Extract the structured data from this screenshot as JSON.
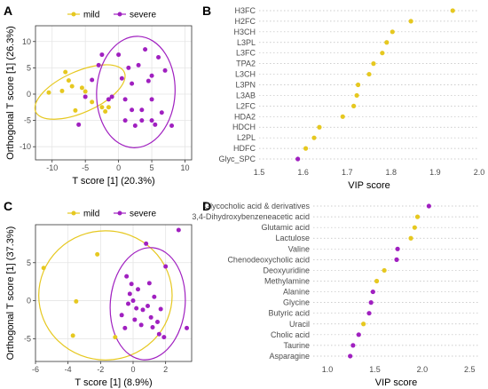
{
  "panels": {
    "A": {
      "letter": "A"
    },
    "B": {
      "letter": "B"
    },
    "C": {
      "letter": "C"
    },
    "D": {
      "letter": "D"
    }
  },
  "colors": {
    "mild": "#e6c820",
    "severe": "#a020c0",
    "grid": "#e5e5e5",
    "axis": "#333333"
  },
  "chart_data": [
    {
      "id": "A",
      "type": "scatter",
      "xlabel": "T score [1] (20.3%)",
      "ylabel": "Orthogonal T score [1] (26.3%)",
      "xlim": [
        -12.5,
        11
      ],
      "ylim": [
        -12.5,
        13
      ],
      "xticks": [
        -10,
        -5,
        0,
        5,
        10
      ],
      "yticks": [
        -10,
        -5,
        0,
        5,
        10
      ],
      "legend": {
        "position": "top",
        "entries": [
          "mild",
          "severe"
        ]
      },
      "grid": true,
      "series": [
        {
          "name": "mild",
          "color": "#e6c820",
          "points": [
            [
              -10.5,
              0.3
            ],
            [
              -8.5,
              0.6
            ],
            [
              -8,
              4.2
            ],
            [
              -7.5,
              2.6
            ],
            [
              -7,
              1.5
            ],
            [
              -6.5,
              -3.1
            ],
            [
              -5.5,
              1.2
            ],
            [
              -5,
              0.5
            ],
            [
              -4,
              -1.5
            ],
            [
              -2.5,
              -2.5
            ],
            [
              -2,
              -3.3
            ],
            [
              -1.5,
              -2.5
            ]
          ]
        },
        {
          "name": "severe",
          "color": "#a020c0",
          "points": [
            [
              -6,
              -5.8
            ],
            [
              -5,
              -0.5
            ],
            [
              -4,
              2.7
            ],
            [
              -3,
              5.5
            ],
            [
              -2.5,
              7.5
            ],
            [
              -1.5,
              -1
            ],
            [
              -1,
              -0.5
            ],
            [
              0,
              7.5
            ],
            [
              0.5,
              3
            ],
            [
              1,
              -5
            ],
            [
              1,
              -1
            ],
            [
              1.5,
              5
            ],
            [
              2,
              -3
            ],
            [
              2,
              2
            ],
            [
              2.5,
              -6
            ],
            [
              3,
              5.5
            ],
            [
              3.5,
              -3
            ],
            [
              3.5,
              -5
            ],
            [
              4,
              8.5
            ],
            [
              4.5,
              2.5
            ],
            [
              5,
              -1
            ],
            [
              5,
              3.5
            ],
            [
              5,
              -5
            ],
            [
              5.5,
              -5.8
            ],
            [
              6,
              7
            ],
            [
              6.5,
              -3.5
            ],
            [
              7,
              4.5
            ],
            [
              8,
              -6
            ]
          ]
        }
      ],
      "ellipses": [
        {
          "series": "mild",
          "cx": -5.8,
          "cy": 0.4,
          "rx": 7.3,
          "ry": 3.9,
          "angle_deg": -24
        },
        {
          "series": "severe",
          "cx": 2.6,
          "cy": 0.4,
          "rx": 5.9,
          "ry": 10.6,
          "angle_deg": 3
        }
      ]
    },
    {
      "id": "B",
      "type": "scatter",
      "xlabel": "VIP score",
      "ylabel": "",
      "xlim": [
        1.5,
        2.0
      ],
      "xticks": [
        1.5,
        1.6,
        1.7,
        1.8,
        1.9,
        2.0
      ],
      "grid": true,
      "color": "#e6c820",
      "categories": [
        "H3FC",
        "H2FC",
        "H3CH",
        "L3PL",
        "L3FC",
        "TPA2",
        "L3CH",
        "L3PN",
        "L3AB",
        "L2FC",
        "HDA2",
        "HDCH",
        "L2PL",
        "HDFC",
        "Glyc_SPC"
      ],
      "values": [
        1.94,
        1.845,
        1.803,
        1.79,
        1.78,
        1.76,
        1.75,
        1.725,
        1.722,
        1.715,
        1.69,
        1.637,
        1.625,
        1.606,
        1.588
      ],
      "point_colors": [
        "#e6c820",
        "#e6c820",
        "#e6c820",
        "#e6c820",
        "#e6c820",
        "#e6c820",
        "#e6c820",
        "#e6c820",
        "#e6c820",
        "#e6c820",
        "#e6c820",
        "#e6c820",
        "#e6c820",
        "#e6c820",
        "#a020c0"
      ]
    },
    {
      "id": "C",
      "type": "scatter",
      "xlabel": "T score [1] (8.9%)",
      "ylabel": "Orthogonal T score [1] (37.3%)",
      "xlim": [
        -6,
        3.6
      ],
      "ylim": [
        -8,
        10
      ],
      "xticks": [
        -6,
        -4,
        -2,
        0,
        2
      ],
      "yticks": [
        -5,
        0,
        5
      ],
      "legend": {
        "position": "top",
        "entries": [
          "mild",
          "severe"
        ]
      },
      "grid": true,
      "series": [
        {
          "name": "mild",
          "color": "#e6c820",
          "points": [
            [
              -5.5,
              4.3
            ],
            [
              -3.7,
              -4.6
            ],
            [
              -3.5,
              -0.1
            ],
            [
              -2.2,
              6.1
            ],
            [
              -1.1,
              -4.8
            ]
          ]
        },
        {
          "name": "severe",
          "color": "#a020c0",
          "points": [
            [
              -0.7,
              -1.9
            ],
            [
              -0.5,
              -3.6
            ],
            [
              -0.4,
              3.2
            ],
            [
              -0.3,
              -0.4
            ],
            [
              -0.1,
              2.2
            ],
            [
              0,
              0
            ],
            [
              0.2,
              -1
            ],
            [
              0.3,
              1.5
            ],
            [
              0.5,
              -3.2
            ],
            [
              0.6,
              -1.2
            ],
            [
              0.8,
              7.5
            ],
            [
              0.9,
              -0.7
            ],
            [
              1,
              2.3
            ],
            [
              1.1,
              -2.2
            ],
            [
              1.2,
              -3.5
            ],
            [
              1.3,
              0.5
            ],
            [
              1.5,
              -2.8
            ],
            [
              1.6,
              -4.4
            ],
            [
              1.7,
              -1.1
            ],
            [
              1.9,
              -4.8
            ],
            [
              2,
              4.5
            ],
            [
              2.8,
              9.3
            ],
            [
              3.3,
              -3.6
            ],
            [
              0.1,
              -2.5
            ],
            [
              -0.2,
              0.9
            ]
          ]
        }
      ],
      "ellipses": [
        {
          "series": "mild",
          "cx": -1.7,
          "cy": 0.7,
          "rx": 4.1,
          "ry": 8.5,
          "angle_deg": 0
        },
        {
          "series": "severe",
          "cx": 0.9,
          "cy": -0.4,
          "rx": 2.3,
          "ry": 7.4,
          "angle_deg": 5
        }
      ]
    },
    {
      "id": "D",
      "type": "scatter",
      "xlabel": "VIP score",
      "ylabel": "",
      "xlim": [
        0.85,
        2.6
      ],
      "xticks": [
        1.0,
        1.5,
        2.0,
        2.5
      ],
      "grid": true,
      "color": "#e6c820",
      "categories": [
        "Glycocholic acid & derivatives",
        "3,4-Dihydroxybenzeneacetic acid",
        "Glutamic acid",
        "Lactulose",
        "Valine",
        "Chenodeoxycholic acid",
        "Deoxyuridine",
        "Methylamine",
        "Alanine",
        "Glycine",
        "Butyric acid",
        "Uracil",
        "Cholic acid",
        "Taurine",
        "Asparagine"
      ],
      "values": [
        2.07,
        1.95,
        1.92,
        1.88,
        1.74,
        1.73,
        1.6,
        1.52,
        1.48,
        1.46,
        1.44,
        1.38,
        1.33,
        1.27,
        1.24
      ],
      "point_colors": [
        "#a020c0",
        "#e6c820",
        "#e6c820",
        "#e6c820",
        "#a020c0",
        "#a020c0",
        "#e6c820",
        "#e6c820",
        "#a020c0",
        "#a020c0",
        "#a020c0",
        "#e6c820",
        "#a020c0",
        "#a020c0",
        "#a020c0"
      ]
    }
  ]
}
